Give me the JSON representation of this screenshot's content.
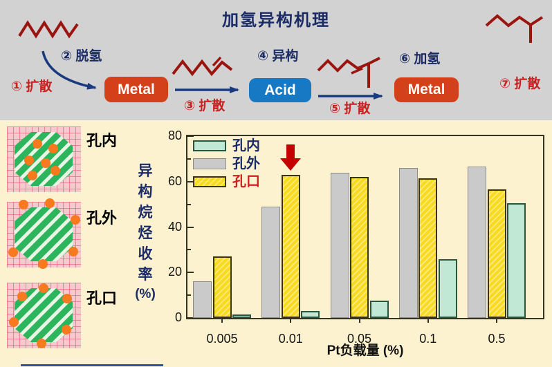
{
  "title": "加氢异构机理",
  "mechanism": {
    "boxes": [
      {
        "label": "Metal",
        "color": "#d4401a"
      },
      {
        "label": "Acid",
        "color": "#1779c4"
      },
      {
        "label": "Metal",
        "color": "#d4401a"
      }
    ],
    "steps": [
      {
        "label": "① 扩散",
        "color": "#cc2020"
      },
      {
        "label": "② 脱氢",
        "color": "#1b2b66"
      },
      {
        "label": "③ 扩散",
        "color": "#cc2020"
      },
      {
        "label": "④ 异构",
        "color": "#1b2b66"
      },
      {
        "label": "⑤ 扩散",
        "color": "#cc2020"
      },
      {
        "label": "⑥ 加氢",
        "color": "#1b2b66"
      },
      {
        "label": "⑦ 扩散",
        "color": "#cc2020"
      }
    ]
  },
  "pore_diagrams": [
    {
      "label": "孔内",
      "label_color": "#1b2b66"
    },
    {
      "label": "孔外",
      "label_color": "#1b2b66"
    },
    {
      "label": "孔口",
      "label_color": "#cc2020"
    }
  ],
  "chart_data": {
    "type": "bar",
    "categories": [
      "0.005",
      "0.01",
      "0.05",
      "0.1",
      "0.5"
    ],
    "series": [
      {
        "name": "孔外",
        "color": "#cacaca",
        "values": [
          16,
          49,
          64,
          66,
          66.5
        ]
      },
      {
        "name": "孔口",
        "color": "#f8da20",
        "hatched": true,
        "values": [
          27,
          63,
          62,
          61.5,
          56.5
        ]
      },
      {
        "name": "孔内",
        "color": "#c0e8d4",
        "values": [
          1.5,
          3,
          7.5,
          26,
          50.5
        ]
      }
    ],
    "legend": [
      {
        "name": "孔内",
        "swatch_class": "bar-s2",
        "text_color": "#1b2b66"
      },
      {
        "name": "孔外",
        "swatch_class": "bar-s0",
        "text_color": "#1b2b66"
      },
      {
        "name": "孔口",
        "swatch_class": "bar-s1",
        "text_color": "#cc2020"
      }
    ],
    "ylabel": "异构烷烃收率 (%)",
    "xlabel": "Pt负载量 (%)",
    "ylim": [
      0,
      80
    ],
    "yticks": [
      0,
      20,
      40,
      60,
      80
    ],
    "minor_yticks": [
      10,
      30,
      50,
      70
    ],
    "grid": false,
    "legend_position": "upper-left-inside",
    "annotation": {
      "type": "down-arrow",
      "category": "0.01",
      "series": "孔口",
      "color": "#c40000"
    }
  }
}
